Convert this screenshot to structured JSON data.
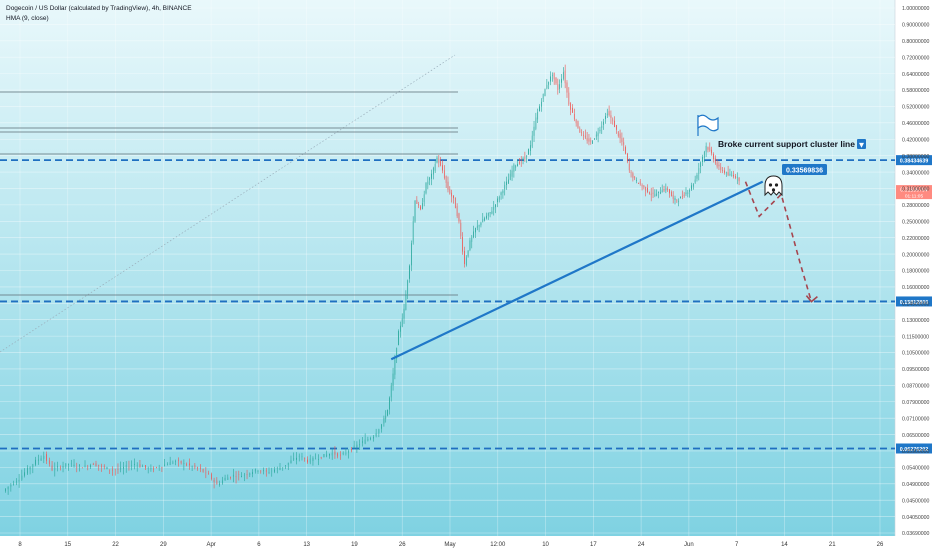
{
  "header": {
    "symbol_line": "Dogecoin / US Dollar (calculated by TradingView), 4h, BINANCE",
    "indicator_line": "HMA (9, close)"
  },
  "annotation": {
    "callout": "Broke current support cluster line",
    "callout_marker": "▼",
    "price_badge": "0.33569836"
  },
  "colors": {
    "background_gradient_top": "#e9f8fb",
    "background_gradient_bottom": "#7fd2e2",
    "trendline": "#1f77c8",
    "dashed_level": "#1f6fc0",
    "projection": "#a6454f",
    "candle_up": "#26a69a",
    "candle_down": "#ef5350",
    "label_blue": "#1f77c8",
    "current_price_label": "#ff8a80"
  },
  "icons": [
    "flag-icon",
    "ghost-icon"
  ],
  "chart_data": {
    "type": "candlestick",
    "title": "Dogecoin / US Dollar (calculated by TradingView), 4h, BINANCE",
    "price_axis": {
      "unit": "USD",
      "scale": "log",
      "tick_labels": [
        "1.00000000",
        "0.90000000",
        "0.80000000",
        "0.72000000",
        "0.64000000",
        "0.58000000",
        "0.52000000",
        "0.46000000",
        "0.42000000",
        "0.38000000",
        "0.34000000",
        "0.31000000",
        "0.28000000",
        "0.25000000",
        "0.22000000",
        "0.20000000",
        "0.18000000",
        "0.16000000",
        "0.14500000",
        "0.13000000",
        "0.11500000",
        "0.10500000",
        "0.09500000",
        "0.08700000",
        "0.07900000",
        "0.07100000",
        "0.06500000",
        "0.05900000",
        "0.05400000",
        "0.04900000",
        "0.04500000",
        "0.04050000",
        "0.03690000"
      ],
      "tick_values": [
        1.0,
        0.9,
        0.8,
        0.72,
        0.64,
        0.58,
        0.52,
        0.46,
        0.42,
        0.38,
        0.34,
        0.31,
        0.28,
        0.25,
        0.22,
        0.2,
        0.18,
        0.16,
        0.145,
        0.13,
        0.115,
        0.105,
        0.095,
        0.087,
        0.079,
        0.071,
        0.065,
        0.059,
        0.054,
        0.049,
        0.045,
        0.0405,
        0.0369
      ]
    },
    "time_axis": {
      "tick_labels": [
        "8",
        "15",
        "22",
        "29",
        "Apr",
        "6",
        "13",
        "19",
        "26",
        "May",
        "12:00",
        "10",
        "17",
        "24",
        "Jun",
        "7",
        "14",
        "21",
        "26"
      ]
    },
    "horizontal_levels": [
      {
        "label": "0.38434639",
        "value": 0.38434639,
        "style": "dashed"
      },
      {
        "label": "0.15812800",
        "value": 0.158128,
        "style": "dashed"
      },
      {
        "label": "0.06276202",
        "value": 0.06276202,
        "style": "dashed"
      }
    ],
    "current_price": {
      "label": "0.31836704",
      "value": 0.31836704,
      "time_label": "01:11:05"
    },
    "trendline_value_label": "0.33569836",
    "price_path": [
      [
        0,
        0.048
      ],
      [
        3,
        0.05
      ],
      [
        6,
        0.052
      ],
      [
        9,
        0.055
      ],
      [
        12,
        0.058
      ],
      [
        15,
        0.06
      ],
      [
        18,
        0.055
      ],
      [
        21,
        0.056
      ],
      [
        24,
        0.057
      ],
      [
        27,
        0.056
      ],
      [
        30,
        0.056
      ],
      [
        33,
        0.057
      ],
      [
        36,
        0.056
      ],
      [
        39,
        0.055
      ],
      [
        42,
        0.055
      ],
      [
        45,
        0.056
      ],
      [
        48,
        0.057
      ],
      [
        51,
        0.056
      ],
      [
        54,
        0.055
      ],
      [
        57,
        0.056
      ],
      [
        60,
        0.057
      ],
      [
        63,
        0.058
      ],
      [
        66,
        0.057
      ],
      [
        69,
        0.056
      ],
      [
        72,
        0.055
      ],
      [
        75,
        0.053
      ],
      [
        78,
        0.05
      ],
      [
        81,
        0.052
      ],
      [
        84,
        0.053
      ],
      [
        87,
        0.053
      ],
      [
        90,
        0.054
      ],
      [
        93,
        0.055
      ],
      [
        96,
        0.054
      ],
      [
        99,
        0.055
      ],
      [
        102,
        0.056
      ],
      [
        105,
        0.058
      ],
      [
        108,
        0.06
      ],
      [
        111,
        0.058
      ],
      [
        114,
        0.059
      ],
      [
        117,
        0.06
      ],
      [
        120,
        0.061
      ],
      [
        123,
        0.06
      ],
      [
        126,
        0.062
      ],
      [
        129,
        0.064
      ],
      [
        132,
        0.066
      ],
      [
        135,
        0.068
      ],
      [
        138,
        0.073
      ],
      [
        140,
        0.08
      ],
      [
        142,
        0.1
      ],
      [
        144,
        0.13
      ],
      [
        146,
        0.15
      ],
      [
        148,
        0.2
      ],
      [
        150,
        0.3
      ],
      [
        152,
        0.28
      ],
      [
        154,
        0.33
      ],
      [
        156,
        0.35
      ],
      [
        158,
        0.39
      ],
      [
        160,
        0.36
      ],
      [
        162,
        0.32
      ],
      [
        164,
        0.3
      ],
      [
        166,
        0.26
      ],
      [
        168,
        0.2
      ],
      [
        170,
        0.23
      ],
      [
        172,
        0.25
      ],
      [
        174,
        0.26
      ],
      [
        176,
        0.27
      ],
      [
        178,
        0.28
      ],
      [
        180,
        0.3
      ],
      [
        182,
        0.32
      ],
      [
        184,
        0.34
      ],
      [
        186,
        0.37
      ],
      [
        188,
        0.38
      ],
      [
        190,
        0.39
      ],
      [
        192,
        0.42
      ],
      [
        194,
        0.5
      ],
      [
        196,
        0.56
      ],
      [
        198,
        0.62
      ],
      [
        200,
        0.66
      ],
      [
        202,
        0.6
      ],
      [
        204,
        0.67
      ],
      [
        206,
        0.55
      ],
      [
        208,
        0.5
      ],
      [
        210,
        0.46
      ],
      [
        212,
        0.44
      ],
      [
        214,
        0.43
      ],
      [
        216,
        0.45
      ],
      [
        218,
        0.48
      ],
      [
        220,
        0.52
      ],
      [
        222,
        0.49
      ],
      [
        224,
        0.45
      ],
      [
        226,
        0.42
      ],
      [
        228,
        0.36
      ],
      [
        230,
        0.34
      ],
      [
        232,
        0.33
      ],
      [
        234,
        0.32
      ],
      [
        236,
        0.31
      ],
      [
        238,
        0.31
      ],
      [
        240,
        0.32
      ],
      [
        242,
        0.32
      ],
      [
        244,
        0.3
      ],
      [
        246,
        0.3
      ],
      [
        248,
        0.31
      ],
      [
        250,
        0.32
      ],
      [
        252,
        0.34
      ],
      [
        254,
        0.38
      ],
      [
        256,
        0.42
      ],
      [
        258,
        0.4
      ],
      [
        260,
        0.37
      ],
      [
        262,
        0.36
      ],
      [
        264,
        0.35
      ],
      [
        266,
        0.35
      ],
      [
        268,
        0.34
      ]
    ],
    "path_index_range": [
      0,
      268
    ],
    "trendline": {
      "from": [
        141,
        0.11
      ],
      "to": [
        269,
        0.33569836
      ]
    },
    "projection": [
      [
        270,
        0.33569836
      ],
      [
        275,
        0.27
      ],
      [
        283,
        0.31
      ],
      [
        290,
        0.2
      ],
      [
        294,
        0.158
      ]
    ]
  }
}
